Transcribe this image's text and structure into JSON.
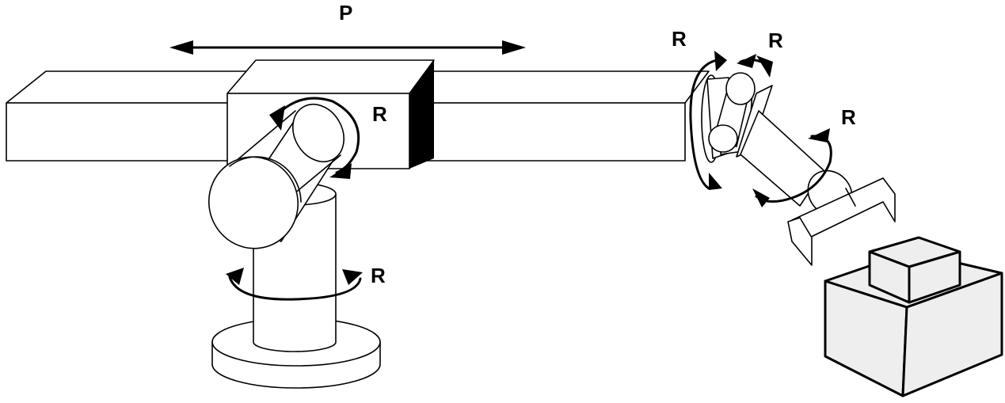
{
  "labels": {
    "prismatic": "P",
    "base_rotation": "R",
    "shoulder_rotation": "R",
    "wrist_rotation_1": "R",
    "wrist_rotation_2": "R",
    "wrist_rotation_3": "R"
  },
  "colors": {
    "stroke": "#000000",
    "fill": "#ffffff",
    "box_fill": "#eeeeee"
  }
}
